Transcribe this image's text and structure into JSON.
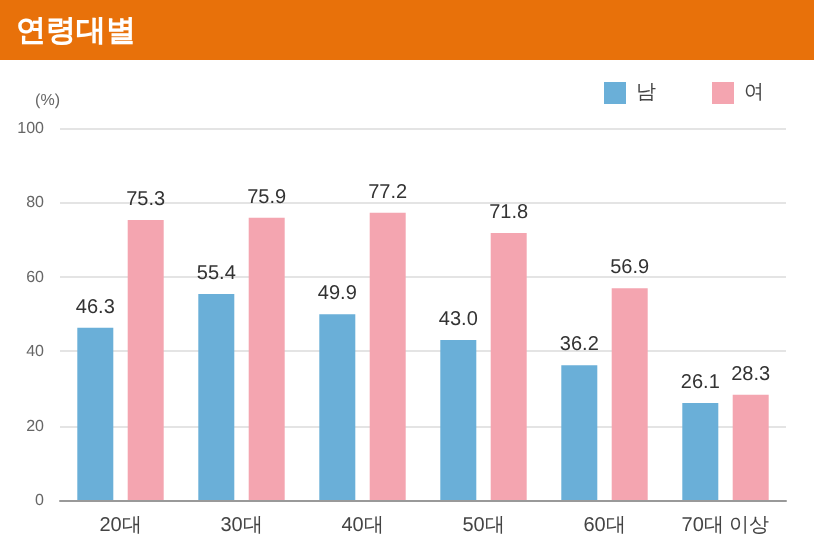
{
  "chart_data": {
    "type": "bar",
    "title": "연령대별",
    "ylabel": "(%)",
    "categories": [
      "20대",
      "30대",
      "40대",
      "50대",
      "60대",
      "70대 이상"
    ],
    "series": [
      {
        "name": "남",
        "color": "#6aafd8",
        "values": [
          46.3,
          55.4,
          49.9,
          43.0,
          36.2,
          26.1
        ],
        "value_labels": [
          "46.3",
          "55.4",
          "49.9",
          "43.0",
          "36.2",
          "26.1"
        ]
      },
      {
        "name": "여",
        "color": "#f4a5b0",
        "values": [
          75.3,
          75.9,
          77.2,
          71.8,
          56.9,
          28.3
        ],
        "value_labels": [
          "75.3",
          "75.9",
          "77.2",
          "71.8",
          "56.9",
          "28.3"
        ]
      }
    ],
    "ylim": [
      0,
      100
    ],
    "yticks": [
      0,
      20,
      40,
      60,
      80,
      100
    ],
    "grid": "y",
    "legend": "top right"
  }
}
